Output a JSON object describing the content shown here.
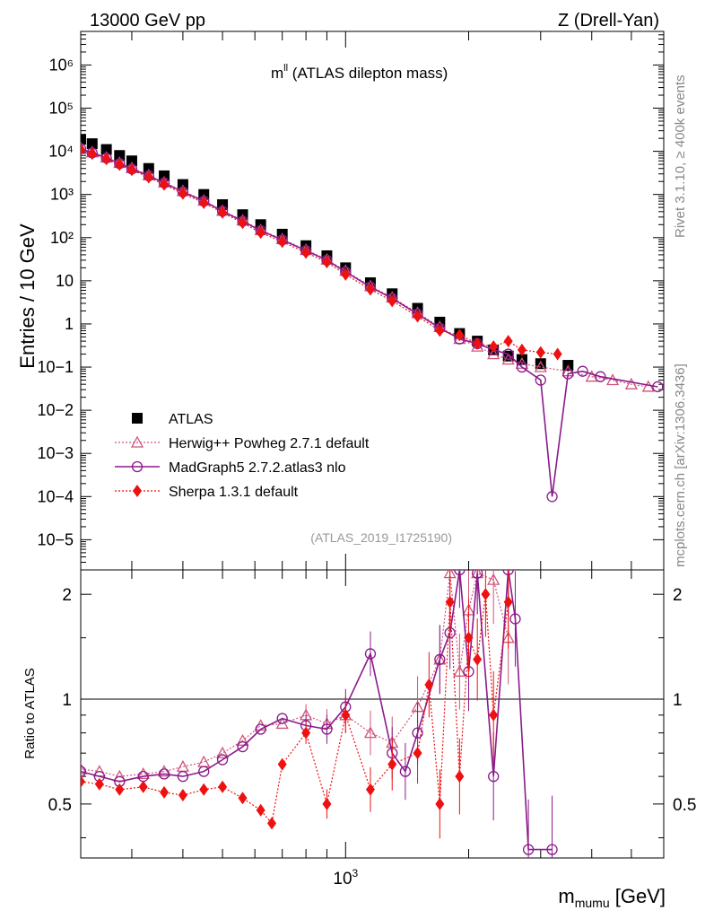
{
  "header": {
    "left": "13000 GeV pp",
    "right": "Z (Drell-Yan)"
  },
  "side_labels": {
    "top": "Rivet 3.1.10, ≥ 400k events",
    "bottom": "mcplots.cern.ch [arXiv:1306.3436]"
  },
  "main": {
    "title_prefix": "m",
    "title_sup": "ll",
    "title_suffix": " (ATLAS dilepton mass)",
    "ylabel": "Entries / 10 GeV",
    "analysis_id": "(ATLAS_2019_I1725190)",
    "y_tick_labels": [
      "10−5",
      "10−4",
      "10−3",
      "10−2",
      "10−1",
      "1",
      "10",
      "10²",
      "10³",
      "10⁴",
      "10⁵",
      "10⁶"
    ]
  },
  "ratio": {
    "ylabel": "Ratio to ATLAS",
    "tick_labels": [
      "0.5",
      "1",
      "2"
    ]
  },
  "xaxis": {
    "label_main": "m",
    "label_sub": "mumu",
    "label_unit": " [GeV]",
    "tick_base": "10",
    "tick_exp": "3"
  },
  "legend": [
    {
      "name": "ATLAS",
      "color": "#000000",
      "marker": "square"
    },
    {
      "name": "Herwig++ Powheg 2.7.1 default",
      "color": "#d0547a",
      "marker": "triangle"
    },
    {
      "name": "MadGraph5 2.7.2.atlas3 nlo",
      "color": "#8b1a8b",
      "marker": "circle"
    },
    {
      "name": "Sherpa 1.3.1 default",
      "color": "#ee1111",
      "marker": "diamond"
    }
  ],
  "chart_data": {
    "type": "scatter",
    "title": "mll (ATLAS dilepton mass)",
    "xlabel": "m_mumu [GeV]",
    "ylabel": "Entries / 10 GeV",
    "ratio_ylabel": "Ratio to ATLAS",
    "xlim": [
      225,
      6000
    ],
    "xscale": "log",
    "ylim": [
      2e-06,
      6000000
    ],
    "yscale": "log",
    "ratio_ylim": [
      0.35,
      2.35
    ],
    "series": [
      {
        "name": "ATLAS",
        "x": [
          225,
          240,
          260,
          280,
          300,
          330,
          360,
          400,
          450,
          500,
          560,
          620,
          700,
          800,
          900,
          1000,
          1150,
          1300,
          1500,
          1700,
          1900,
          2100,
          2300,
          2500,
          2700,
          3000,
          3500
        ],
        "y": [
          19000,
          15000,
          11000,
          8000,
          6000,
          4000,
          2700,
          1700,
          1000,
          580,
          340,
          200,
          120,
          65,
          38,
          20,
          9,
          5,
          2.3,
          1.1,
          0.6,
          0.4,
          0.25,
          0.18,
          0.15,
          0.12,
          0.11
        ]
      },
      {
        "name": "Herwig++ Powheg 2.7.1 default",
        "x": [
          225,
          240,
          260,
          280,
          300,
          330,
          360,
          400,
          450,
          500,
          560,
          620,
          700,
          800,
          900,
          1000,
          1150,
          1300,
          1500,
          1700,
          1900,
          2100,
          2300,
          2500,
          2700,
          3000,
          3500,
          4000,
          4500,
          5000,
          5500
        ],
        "y": [
          12000,
          9500,
          7200,
          5400,
          4100,
          2800,
          1900,
          1200,
          720,
          420,
          250,
          150,
          92,
          52,
          31,
          17,
          7.5,
          4.1,
          1.8,
          0.85,
          0.45,
          0.3,
          0.2,
          0.15,
          0.12,
          0.1,
          0.08,
          0.06,
          0.05,
          0.04,
          0.035
        ]
      },
      {
        "name": "MadGraph5 2.7.2.atlas3 nlo",
        "x": [
          225,
          240,
          260,
          280,
          300,
          330,
          360,
          400,
          450,
          500,
          560,
          620,
          700,
          800,
          900,
          1000,
          1150,
          1300,
          1500,
          1700,
          1900,
          2100,
          2300,
          2500,
          2700,
          3000,
          3200,
          3500,
          3800,
          4200,
          5800
        ],
        "y": [
          11500,
          9200,
          7000,
          5200,
          3900,
          2700,
          1850,
          1150,
          700,
          410,
          240,
          145,
          88,
          50,
          30,
          16,
          7.2,
          3.9,
          1.7,
          0.8,
          0.45,
          0.35,
          0.25,
          0.2,
          0.1,
          0.05,
          0.0001,
          0.07,
          0.08,
          0.06,
          0.035
        ]
      },
      {
        "name": "Sherpa 1.3.1 default",
        "x": [
          225,
          240,
          260,
          280,
          300,
          330,
          360,
          400,
          450,
          500,
          560,
          620,
          700,
          800,
          900,
          1000,
          1150,
          1300,
          1500,
          1700,
          1900,
          2100,
          2300,
          2500,
          2700,
          3000,
          3300
        ],
        "y": [
          11000,
          8800,
          6600,
          4900,
          3700,
          2500,
          1700,
          1050,
          640,
          380,
          220,
          130,
          80,
          45,
          27,
          14,
          6.3,
          3.4,
          1.5,
          0.7,
          0.55,
          0.35,
          0.3,
          0.4,
          0.25,
          0.22,
          0.2
        ]
      }
    ],
    "ratio_series": [
      {
        "name": "Herwig++ Powheg 2.7.1 default",
        "x": [
          225,
          250,
          280,
          320,
          360,
          400,
          450,
          500,
          560,
          620,
          700,
          800,
          900,
          1000,
          1150,
          1300,
          1500,
          1700,
          1800,
          1900,
          2000,
          2100,
          2300,
          2500
        ],
        "y": [
          0.63,
          0.62,
          0.6,
          0.61,
          0.62,
          0.64,
          0.66,
          0.7,
          0.76,
          0.84,
          0.85,
          0.9,
          0.85,
          0.9,
          0.8,
          0.75,
          0.95,
          1.3,
          2.3,
          1.2,
          1.8,
          2.3,
          2.2,
          1.5
        ]
      },
      {
        "name": "MadGraph5 2.7.2.atlas3 nlo",
        "x": [
          225,
          250,
          280,
          320,
          360,
          400,
          450,
          500,
          560,
          620,
          700,
          800,
          900,
          1000,
          1150,
          1300,
          1400,
          1500,
          1700,
          1800,
          1900,
          2000,
          2100,
          2300,
          2500,
          2600,
          2800,
          3200
        ],
        "y": [
          0.62,
          0.6,
          0.58,
          0.6,
          0.61,
          0.6,
          0.62,
          0.67,
          0.73,
          0.82,
          0.88,
          0.84,
          0.82,
          0.95,
          1.35,
          0.7,
          0.62,
          0.8,
          1.3,
          1.55,
          2.35,
          1.2,
          2.3,
          0.6,
          2.35,
          1.7,
          0.37,
          0.37
        ]
      },
      {
        "name": "Sherpa 1.3.1 default",
        "x": [
          225,
          250,
          280,
          320,
          360,
          400,
          450,
          500,
          560,
          620,
          660,
          700,
          800,
          900,
          1000,
          1150,
          1300,
          1500,
          1600,
          1700,
          1800,
          1900,
          2000,
          2100,
          2200,
          2300,
          2500
        ],
        "y": [
          0.58,
          0.57,
          0.55,
          0.56,
          0.54,
          0.53,
          0.55,
          0.56,
          0.52,
          0.48,
          0.44,
          0.65,
          0.8,
          0.5,
          0.9,
          0.55,
          0.65,
          0.7,
          1.1,
          0.5,
          1.9,
          0.6,
          1.5,
          1.3,
          2.0,
          0.9,
          1.9
        ]
      }
    ]
  }
}
